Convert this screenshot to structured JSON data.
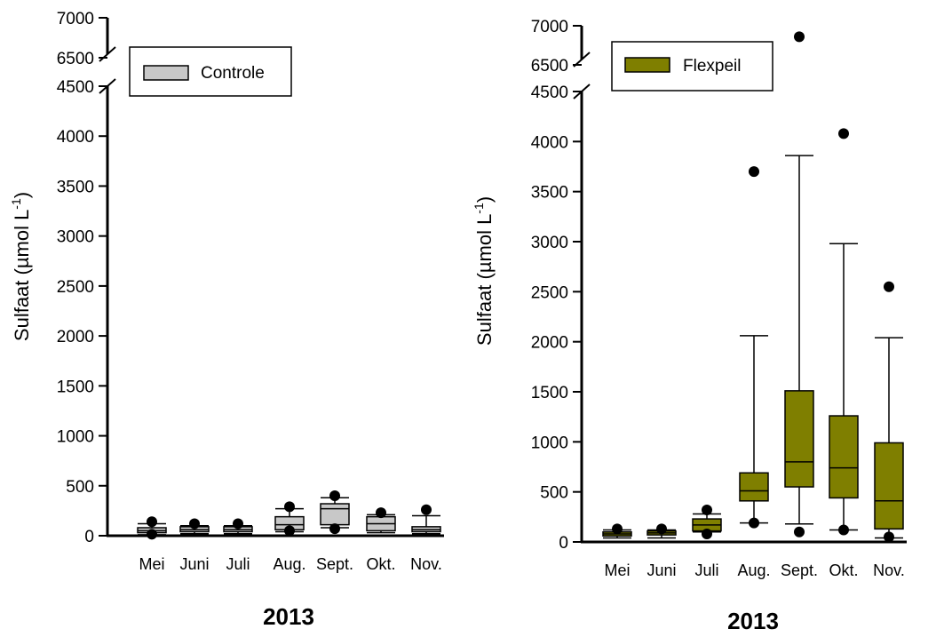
{
  "chart_data": [
    {
      "type": "box",
      "ylabel": "Sulfaat (µmol L",
      "ylabel_sup": "-1",
      "ylabel_close": ")",
      "xlabel": "2013",
      "legend": {
        "label": "Controle",
        "placement": "top-left",
        "color": "#c8c8c8"
      },
      "box_color": "#c8c8c8",
      "categories": [
        "Mei",
        "Juni",
        "Juli",
        "Aug.",
        "Sept.",
        "Okt.",
        "Nov."
      ],
      "y_ticks_lower": [
        "0",
        "500",
        "1000",
        "1500",
        "2000",
        "2500",
        "3000",
        "3500",
        "4000",
        "4500"
      ],
      "y_ticks_upper": [
        "6500",
        "7000"
      ],
      "axis_break": [
        4500,
        6500
      ],
      "ylim": [
        0,
        7000
      ],
      "boxes": [
        {
          "whisker_low": 10,
          "q1": 30,
          "median": 50,
          "q3": 80,
          "whisker_high": 120,
          "outliers": [
            140,
            15
          ]
        },
        {
          "whisker_low": 20,
          "q1": 40,
          "median": 60,
          "q3": 90,
          "whisker_high": 100,
          "outliers": [
            120
          ]
        },
        {
          "whisker_low": 20,
          "q1": 40,
          "median": 60,
          "q3": 90,
          "whisker_high": 100,
          "outliers": [
            120
          ]
        },
        {
          "whisker_low": 40,
          "q1": 60,
          "median": 110,
          "q3": 190,
          "whisker_high": 270,
          "outliers": [
            290,
            50
          ]
        },
        {
          "whisker_low": 80,
          "q1": 110,
          "median": 270,
          "q3": 320,
          "whisker_high": 380,
          "outliers": [
            400,
            70
          ]
        },
        {
          "whisker_low": 30,
          "q1": 50,
          "median": 120,
          "q3": 190,
          "whisker_high": 210,
          "outliers": [
            230
          ]
        },
        {
          "whisker_low": 20,
          "q1": 40,
          "median": 60,
          "q3": 90,
          "whisker_high": 200,
          "outliers": [
            260
          ]
        }
      ]
    },
    {
      "type": "box",
      "ylabel": "Sulfaat (µmol L",
      "ylabel_sup": "-1",
      "ylabel_close": ")",
      "xlabel": "2013",
      "legend": {
        "label": "Flexpeil",
        "placement": "top-left",
        "color": "#7f7f00"
      },
      "box_color": "#7f7f00",
      "categories": [
        "Mei",
        "Juni",
        "Juli",
        "Aug.",
        "Sept.",
        "Okt.",
        "Nov."
      ],
      "y_ticks_lower": [
        "0",
        "500",
        "1000",
        "1500",
        "2000",
        "2500",
        "3000",
        "3500",
        "4000",
        "4500"
      ],
      "y_ticks_upper": [
        "6500",
        "7000"
      ],
      "axis_break": [
        4500,
        6500
      ],
      "ylim": [
        0,
        7000
      ],
      "boxes": [
        {
          "whisker_low": 40,
          "q1": 60,
          "median": 80,
          "q3": 100,
          "whisker_high": 120,
          "outliers": [
            130
          ]
        },
        {
          "whisker_low": 40,
          "q1": 70,
          "median": 90,
          "q3": 110,
          "whisker_high": 120,
          "outliers": [
            130
          ]
        },
        {
          "whisker_low": 100,
          "q1": 110,
          "median": 170,
          "q3": 230,
          "whisker_high": 280,
          "outliers": [
            320,
            80
          ]
        },
        {
          "whisker_low": 190,
          "q1": 410,
          "median": 510,
          "q3": 690,
          "whisker_high": 2060,
          "outliers": [
            3700,
            190
          ]
        },
        {
          "whisker_low": 180,
          "q1": 550,
          "median": 800,
          "q3": 1510,
          "whisker_high": 3860,
          "outliers": [
            6860,
            100
          ]
        },
        {
          "whisker_low": 120,
          "q1": 440,
          "median": 740,
          "q3": 1260,
          "whisker_high": 2980,
          "outliers": [
            4080,
            120
          ]
        },
        {
          "whisker_low": 40,
          "q1": 130,
          "median": 410,
          "q3": 990,
          "whisker_high": 2040,
          "outliers": [
            2550,
            50
          ]
        }
      ]
    }
  ]
}
